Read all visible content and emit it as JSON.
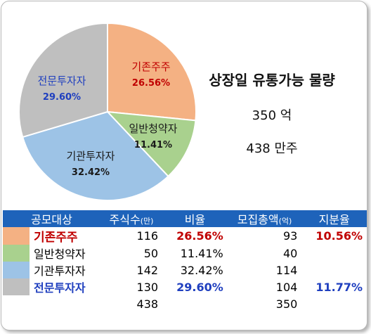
{
  "chart_data": {
    "type": "pie",
    "title": "상장일 유통가능 물량",
    "slices": [
      {
        "name": "기존주주",
        "value": 26.56,
        "label": "26.56%",
        "color": "#f4b183",
        "name_color": "#c00000",
        "pct_color": "#c00000"
      },
      {
        "name": "일반청약자",
        "value": 11.41,
        "label": "11.41%",
        "color": "#a9d18e",
        "name_color": "#1a1a1a",
        "pct_color": "#1a1a1a"
      },
      {
        "name": "기관투자자",
        "value": 32.42,
        "label": "32.42%",
        "color": "#9dc3e6",
        "name_color": "#1a1a1a",
        "pct_color": "#1a1a1a"
      },
      {
        "name": "전문투자자",
        "value": 29.6,
        "label": "29.60%",
        "color": "#bfbfbf",
        "name_color": "#1f3fbf",
        "pct_color": "#1f3fbf"
      }
    ]
  },
  "summary": {
    "title": "상장일 유통가능 물량",
    "value_won": "350 억",
    "value_shares": "438 만주"
  },
  "table": {
    "headers": {
      "category": "공모대상",
      "shares": "주식수",
      "shares_unit": "(만)",
      "ratio": "비율",
      "amount": "모집총액",
      "amount_unit": "(억)",
      "stake": "지분율"
    },
    "rows": [
      {
        "swatch": "#f4b183",
        "category": "기존주주",
        "shares": "116",
        "ratio": "26.56%",
        "amount": "93",
        "stake": "10.56%"
      },
      {
        "swatch": "#a9d18e",
        "category": "일반청약자",
        "shares": "50",
        "ratio": "11.41%",
        "amount": "40",
        "stake": ""
      },
      {
        "swatch": "#9dc3e6",
        "category": "기관투자자",
        "shares": "142",
        "ratio": "32.42%",
        "amount": "114",
        "stake": ""
      },
      {
        "swatch": "#bfbfbf",
        "category": "전문투자자",
        "shares": "130",
        "ratio": "29.60%",
        "amount": "104",
        "stake": "11.77%"
      }
    ],
    "total": {
      "shares": "438",
      "amount": "350"
    }
  }
}
